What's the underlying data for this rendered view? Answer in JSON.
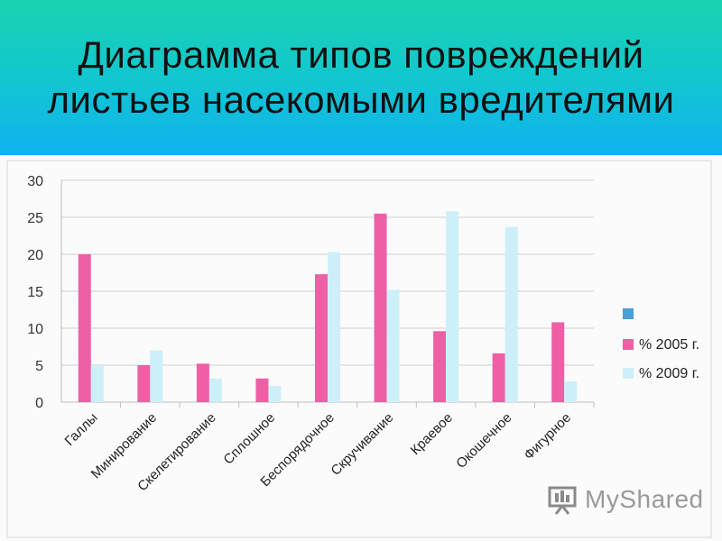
{
  "header": {
    "title": "Диаграмма типов повреждений листьев насекомыми вредителями"
  },
  "watermark": {
    "text": "MyShared"
  },
  "chart_data": {
    "type": "bar",
    "title": "Диаграмма типов повреждений листьев насекомыми вредителями",
    "categories": [
      "Галлы",
      "Минирование",
      "Скелетирование",
      "Сплошное",
      "Беспорядочное",
      "Скручивание",
      "Краевое",
      "Окошечное",
      "Фигурное"
    ],
    "series": [
      {
        "name": "% 2005 г.",
        "color": "#ee5fa6",
        "values": [
          20,
          5,
          5.2,
          3.2,
          17.3,
          25.5,
          9.6,
          6.6,
          10.8
        ]
      },
      {
        "name": "% 2009 г.",
        "color": "#cdf0f8",
        "values": [
          5,
          7,
          3.2,
          2.2,
          20.3,
          15.2,
          25.8,
          23.7,
          2.8
        ]
      }
    ],
    "legend": {
      "position": "right",
      "entries": [
        {
          "name": "",
          "color": "#4a9fd6"
        },
        {
          "name": "% 2005 г.",
          "color": "#ee5fa6"
        },
        {
          "name": "% 2009 г.",
          "color": "#cdf0f8"
        }
      ]
    },
    "ylim": [
      0,
      30
    ],
    "yticks": [
      0,
      5,
      10,
      15,
      20,
      25,
      30
    ],
    "grid": true,
    "xlabel": "",
    "ylabel": ""
  }
}
